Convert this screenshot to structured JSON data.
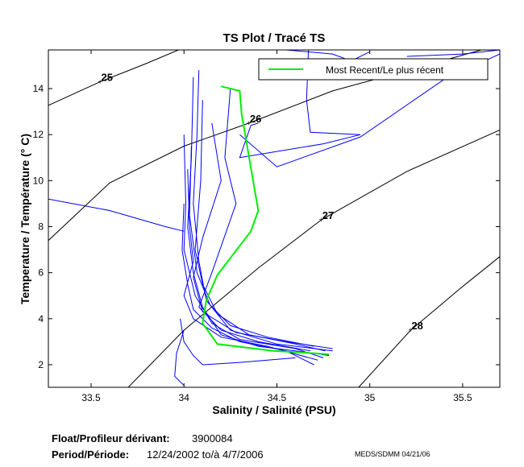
{
  "chart_data": {
    "type": "line",
    "title": "TS Plot / Tracé TS",
    "xlabel": "Salinity / Salinité (PSU)",
    "ylabel": "Temperature / Température (° C)",
    "xlim": [
      33.27,
      35.7
    ],
    "ylim": [
      1.02,
      15.68
    ],
    "xticks": [
      33.5,
      34,
      34.5,
      35,
      35.5
    ],
    "xtick_labels": [
      "33.5",
      "34",
      "34.5",
      "35",
      "35.5"
    ],
    "yticks": [
      2,
      4,
      6,
      8,
      10,
      12,
      14
    ],
    "ytick_labels": [
      "2",
      "4",
      "6",
      "8",
      "10",
      "12",
      "14"
    ],
    "legend": {
      "placement": "top-right",
      "entries": [
        "Most Recent/Le plus récent"
      ]
    },
    "colors": {
      "profiles": "#0000ff",
      "recent": "#00ee00",
      "isopycnal": "#000000"
    },
    "isopycnals": [
      {
        "label": "25",
        "label_at": [
          33.55,
          14.3
        ],
        "points": [
          [
            33.27,
            13.27
          ],
          [
            33.55,
            14.3
          ],
          [
            33.8,
            15.1
          ],
          [
            33.97,
            15.68
          ]
        ]
      },
      {
        "label": "26",
        "label_at": [
          34.35,
          12.5
        ],
        "points": [
          [
            33.27,
            7.4
          ],
          [
            33.6,
            9.9
          ],
          [
            34.0,
            11.5
          ],
          [
            34.35,
            12.5
          ],
          [
            34.8,
            13.9
          ],
          [
            35.3,
            15.0
          ],
          [
            35.6,
            15.68
          ]
        ]
      },
      {
        "label": "27",
        "label_at": [
          34.74,
          8.3
        ],
        "points": [
          [
            33.7,
            1.02
          ],
          [
            34.0,
            3.5
          ],
          [
            34.4,
            6.2
          ],
          [
            34.74,
            8.3
          ],
          [
            35.2,
            10.4
          ],
          [
            35.7,
            12.2
          ]
        ]
      },
      {
        "label": "28",
        "label_at": [
          35.22,
          3.5
        ],
        "points": [
          [
            34.94,
            1.02
          ],
          [
            35.22,
            3.5
          ],
          [
            35.5,
            5.4
          ],
          [
            35.7,
            6.7
          ]
        ]
      }
    ],
    "profiles": [
      [
        [
          34.05,
          14.5
        ],
        [
          34.04,
          11
        ],
        [
          34.02,
          8
        ],
        [
          34.05,
          6
        ],
        [
          34.1,
          4.5
        ],
        [
          34.2,
          3.3
        ],
        [
          34.4,
          2.8
        ],
        [
          34.7,
          2.5
        ],
        [
          34.78,
          2.4
        ]
      ],
      [
        [
          34.0,
          12
        ],
        [
          34.01,
          9
        ],
        [
          34.0,
          7
        ],
        [
          34.06,
          5
        ],
        [
          34.15,
          3.8
        ],
        [
          34.3,
          3.1
        ],
        [
          34.6,
          2.7
        ],
        [
          34.75,
          2.3
        ]
      ],
      [
        [
          34.08,
          14.8
        ],
        [
          34.07,
          12
        ],
        [
          34.05,
          9
        ],
        [
          34.08,
          6.5
        ],
        [
          34.12,
          4.8
        ],
        [
          34.25,
          3.5
        ],
        [
          34.5,
          2.9
        ],
        [
          34.8,
          2.6
        ]
      ],
      [
        [
          34.02,
          10.5
        ],
        [
          34.03,
          8
        ],
        [
          34.05,
          6.5
        ],
        [
          34.0,
          5
        ],
        [
          34.05,
          4
        ],
        [
          34.2,
          3.2
        ],
        [
          34.45,
          2.8
        ],
        [
          34.72,
          2.2
        ]
      ],
      [
        [
          34.1,
          13.5
        ],
        [
          34.09,
          10
        ],
        [
          34.06,
          7
        ],
        [
          34.1,
          5.5
        ],
        [
          34.18,
          4.2
        ],
        [
          34.35,
          3.3
        ],
        [
          34.6,
          2.9
        ],
        [
          34.76,
          2.6
        ]
      ],
      [
        [
          34.0,
          9
        ],
        [
          33.99,
          7
        ],
        [
          34.02,
          5.5
        ],
        [
          34.05,
          4.4
        ],
        [
          34.15,
          3.6
        ],
        [
          34.3,
          3.0
        ],
        [
          34.55,
          2.6
        ],
        [
          34.7,
          2.0
        ]
      ],
      [
        [
          34.04,
          11.5
        ],
        [
          34.03,
          8.5
        ],
        [
          34.07,
          6
        ],
        [
          34.14,
          4.6
        ],
        [
          34.25,
          3.7
        ],
        [
          34.45,
          3.2
        ],
        [
          34.7,
          2.8
        ]
      ],
      [
        [
          34.15,
          12.5
        ],
        [
          34.2,
          10
        ],
        [
          34.1,
          7.5
        ],
        [
          34.05,
          5.8
        ],
        [
          34.1,
          4.3
        ],
        [
          34.28,
          3.4
        ],
        [
          34.55,
          3.0
        ],
        [
          34.8,
          2.7
        ]
      ],
      [
        [
          34.25,
          14.0
        ],
        [
          34.22,
          11
        ],
        [
          34.28,
          9
        ],
        [
          34.15,
          6
        ],
        [
          34.08,
          4.5
        ],
        [
          34.2,
          3.5
        ],
        [
          34.4,
          3.0
        ],
        [
          34.68,
          2.6
        ]
      ],
      [
        [
          33.98,
          4.0
        ],
        [
          34.0,
          3.0
        ],
        [
          34.05,
          2.4
        ],
        [
          34.1,
          2.0
        ],
        [
          34.3,
          2.1
        ],
        [
          34.6,
          2.3
        ]
      ],
      [
        [
          34.0,
          3.5
        ],
        [
          33.96,
          2.5
        ],
        [
          33.95,
          1.5
        ],
        [
          34.0,
          1.1
        ]
      ],
      [
        [
          33.27,
          9.2
        ],
        [
          33.6,
          8.7
        ],
        [
          33.9,
          8.0
        ],
        [
          34.0,
          7.8
        ]
      ],
      [
        [
          34.67,
          15.68
        ],
        [
          34.66,
          13.5
        ],
        [
          34.68,
          12.1
        ],
        [
          34.95,
          12.0
        ],
        [
          34.75,
          11.6
        ],
        [
          34.3,
          11.0
        ],
        [
          34.36,
          12.4
        ],
        [
          34.4,
          12.5
        ]
      ],
      [
        [
          35.2,
          15.4
        ],
        [
          35.5,
          15.5
        ],
        [
          35.7,
          15.68
        ]
      ],
      [
        [
          34.55,
          15.68
        ],
        [
          34.8,
          15.5
        ],
        [
          34.9,
          15.2
        ],
        [
          35.0,
          15.6
        ]
      ],
      [
        [
          34.3,
          12.0
        ],
        [
          34.5,
          10.6
        ],
        [
          34.95,
          11.9
        ],
        [
          35.4,
          14.4
        ],
        [
          35.7,
          15.5
        ]
      ]
    ],
    "recent_profile": [
      [
        34.2,
        14.1
      ],
      [
        34.3,
        13.9
      ],
      [
        34.31,
        12.9
      ],
      [
        34.4,
        8.7
      ],
      [
        34.36,
        7.8
      ],
      [
        34.18,
        5.9
      ],
      [
        34.12,
        4.8
      ],
      [
        34.1,
        3.8
      ],
      [
        34.18,
        2.9
      ],
      [
        34.48,
        2.6
      ],
      [
        34.7,
        2.5
      ],
      [
        34.78,
        2.45
      ]
    ]
  },
  "footer": {
    "float_label": "Float/Profileur dérivant:",
    "float_id": "3900084",
    "period_label": "Period/Période:",
    "period_value": "12/24/2002  to/à  4/7/2006",
    "credit": "MEDS/SDMM  04/21/06"
  }
}
